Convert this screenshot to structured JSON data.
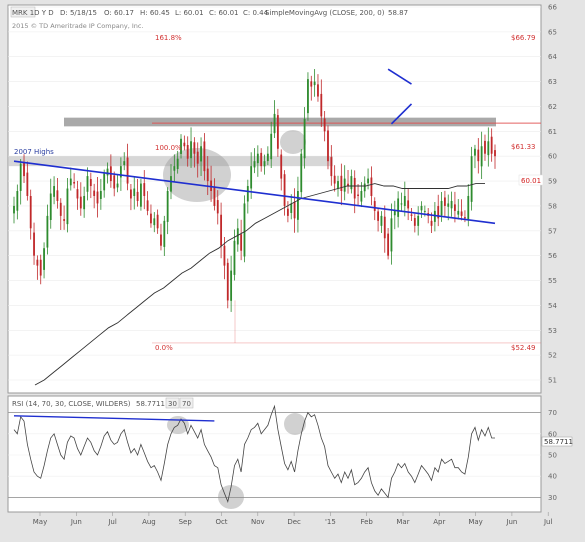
{
  "header": {
    "symbol": "MRK 1D Y D",
    "date": "D: 5/18/15",
    "open": "O: 60.17",
    "high": "H: 60.45",
    "low": "L: 60.01",
    "close": "C: 60.01",
    "change": "C: 0.44",
    "indicator": "SimpleMovingAvg (CLOSE, 200, 0)",
    "indicator_value": "58.87",
    "copyright": "2015 © TD Ameritrade IP Company, Inc."
  },
  "labels": {
    "highs": "2007 Highs",
    "fib_top": "161.8%",
    "fib_top_price": "$66.79",
    "fib_mid": "100.0%",
    "fib_mid_price": "$61.33",
    "fib_low": "0.0%",
    "fib_low_price": "$52.49",
    "last_price": "60.01"
  },
  "rsi_header": {
    "title": "RSI (14, 70, 30, CLOSE, WILDERS)",
    "value": "58.7711",
    "p1": "30",
    "p2": "70",
    "last": "58.7711"
  },
  "colors": {
    "up": "#2e8b2e",
    "down": "#c0282a",
    "trend": "#1f2fd0",
    "fib": "#e05050",
    "band": "#8c8c8c",
    "ma": "#303030"
  },
  "chart_data": [
    {
      "type": "candlestick",
      "price_axis": {
        "ylim": [
          51,
          66
        ],
        "ticks": [
          "51",
          "52",
          "53",
          "54",
          "55",
          "56",
          "57",
          "58",
          "59",
          "60",
          "61",
          "62",
          "63",
          "64",
          "65",
          "66"
        ]
      },
      "x_axis": {
        "ticks": [
          "May",
          "Jun",
          "Jul",
          "Aug",
          "Sep",
          "Oct",
          "Nov",
          "Dec",
          "'15",
          "Feb",
          "Mar",
          "Apr",
          "May",
          "Jun",
          "Jul"
        ]
      },
      "series": {
        "close": [
          58.0,
          58.6,
          59.7,
          59.2,
          58.4,
          57.1,
          56.0,
          55.6,
          55.2,
          56.3,
          57.6,
          58.5,
          58.8,
          58.2,
          57.6,
          57.4,
          58.7,
          59.1,
          58.9,
          58.3,
          57.9,
          58.4,
          59.2,
          58.8,
          58.4,
          58.1,
          58.6,
          59.3,
          59.5,
          59.0,
          58.7,
          58.9,
          59.6,
          59.8,
          58.9,
          58.3,
          58.7,
          58.2,
          58.9,
          58.4,
          57.8,
          57.3,
          57.5,
          57.1,
          56.4,
          57.4,
          58.6,
          59.2,
          59.6,
          59.9,
          60.7,
          60.4,
          59.9,
          60.6,
          60.1,
          59.7,
          60.4,
          59.4,
          59.0,
          58.6,
          58.0,
          57.7,
          56.4,
          55.6,
          54.2,
          55.4,
          56.6,
          57.1,
          56.2,
          58.1,
          58.8,
          59.6,
          59.8,
          60.1,
          59.6,
          59.8,
          60.1,
          60.9,
          61.7,
          60.3,
          59.1,
          58.0,
          57.6,
          58.1,
          57.5,
          58.6,
          60.1,
          61.5,
          63.1,
          62.8,
          63.0,
          62.4,
          61.6,
          61.0,
          59.8,
          59.2,
          58.9,
          59.0,
          58.6,
          59.1,
          58.8,
          59.2,
          58.3,
          58.4,
          58.6,
          58.9,
          59.1,
          58.4,
          57.8,
          57.4,
          57.6,
          56.7,
          56.0,
          57.5,
          57.8,
          58.3,
          58.1,
          58.4,
          57.9,
          57.6,
          57.2,
          57.6,
          58.0,
          57.8,
          57.6,
          57.2,
          57.8,
          57.5,
          58.2,
          58.0,
          58.1,
          58.2,
          57.8,
          57.8,
          57.6,
          57.5,
          58.4,
          60.0,
          60.3,
          59.8,
          60.4,
          60.1,
          60.6,
          60.1,
          60.0
        ],
        "sma200": [
          50.8,
          51.0,
          51.3,
          51.6,
          51.9,
          52.2,
          52.5,
          52.8,
          53.1,
          53.3,
          53.6,
          53.9,
          54.2,
          54.5,
          54.7,
          55.0,
          55.3,
          55.5,
          55.8,
          56.1,
          56.3,
          56.6,
          56.8,
          57.0,
          57.3,
          57.5,
          57.7,
          57.9,
          58.1,
          58.3,
          58.4,
          58.5,
          58.6,
          58.7,
          58.8,
          58.8,
          58.8,
          58.9,
          58.8,
          58.8,
          58.7,
          58.7,
          58.7,
          58.7,
          58.7,
          58.7,
          58.8,
          58.8,
          58.9,
          58.9
        ],
        "trendline": [
          [
            0,
            59.8
          ],
          [
            144,
            57.3
          ]
        ],
        "upper_trend": [
          [
            112,
            63.5
          ],
          [
            119,
            62.9
          ]
        ],
        "lower_trend": [
          [
            113,
            61.3
          ],
          [
            119,
            62.1
          ]
        ],
        "gray_band": [
          61.2,
          61.55
        ],
        "light_band": [
          59.6,
          60.0
        ],
        "fib_levels": {
          "161.8%": 66.79,
          "100.0%": 61.33,
          "0.0%": 52.49
        }
      }
    },
    {
      "type": "line",
      "name": "RSI",
      "ylim": [
        25,
        75
      ],
      "y_ticks": [
        "30",
        "40",
        "50",
        "60",
        "70"
      ],
      "levels": [
        30,
        70
      ],
      "values": [
        62,
        60,
        68,
        66,
        55,
        48,
        42,
        40,
        39,
        45,
        52,
        58,
        60,
        55,
        50,
        48,
        56,
        59,
        58,
        53,
        50,
        54,
        58,
        56,
        52,
        50,
        54,
        59,
        61,
        57,
        55,
        56,
        60,
        62,
        56,
        51,
        53,
        50,
        55,
        51,
        47,
        44,
        45,
        42,
        38,
        46,
        55,
        60,
        63,
        64,
        67,
        65,
        60,
        64,
        61,
        58,
        62,
        55,
        52,
        49,
        45,
        44,
        36,
        32,
        28,
        35,
        45,
        48,
        42,
        55,
        58,
        62,
        63,
        65,
        60,
        62,
        64,
        69,
        73,
        62,
        54,
        46,
        43,
        47,
        42,
        52,
        60,
        66,
        70,
        68,
        69,
        64,
        58,
        54,
        45,
        42,
        39,
        41,
        37,
        42,
        39,
        43,
        36,
        37,
        39,
        42,
        44,
        37,
        33,
        31,
        34,
        32,
        30,
        39,
        42,
        46,
        44,
        46,
        42,
        40,
        37,
        41,
        45,
        43,
        41,
        38,
        44,
        42,
        48,
        46,
        47,
        48,
        44,
        44,
        42,
        41,
        49,
        60,
        63,
        57,
        62,
        59,
        63,
        58,
        58
      ],
      "rsi_trend": [
        [
          0,
          68.5
        ],
        [
          54,
          67.0
        ]
      ]
    }
  ]
}
